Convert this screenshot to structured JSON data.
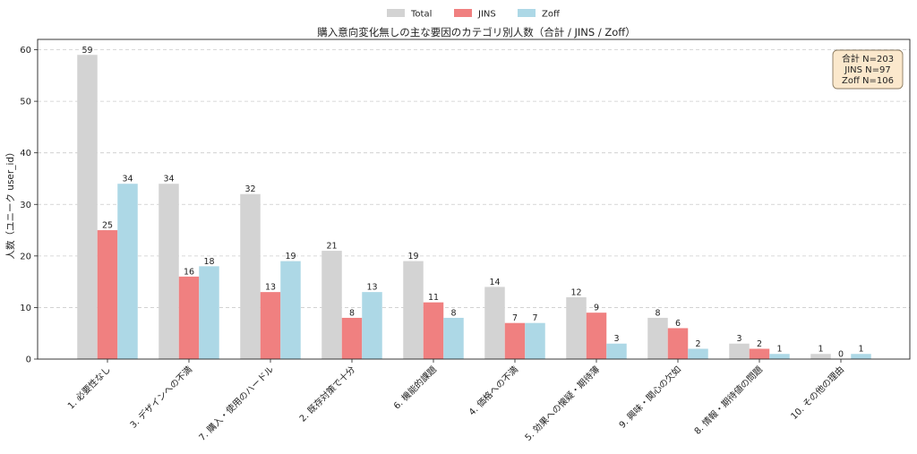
{
  "chart_data": {
    "type": "bar",
    "title": "購入意向変化無しの主な要因のカテゴリ別人数（合計 / JINS / Zoff）",
    "xlabel": "",
    "ylabel": "人数（ユニーク user_id）",
    "ylim": [
      0,
      62
    ],
    "yticks": [
      0,
      10,
      20,
      30,
      40,
      50,
      60
    ],
    "grid": true,
    "legend_position": "top-center",
    "categories": [
      "1. 必要性なし",
      "3. デザインへの不満",
      "7. 購入・使用のハードル",
      "2. 既存対策で十分",
      "6. 機能的課題",
      "4. 価格への不満",
      "5. 効果への懐疑・期待薄",
      "9. 興味・関心の欠如",
      "8. 情報・期待値の問題",
      "10. その他の理由"
    ],
    "series": [
      {
        "name": "Total",
        "color": "#d3d3d3",
        "values": [
          59,
          34,
          32,
          21,
          19,
          14,
          12,
          8,
          3,
          1
        ]
      },
      {
        "name": "JINS",
        "color": "#f08080",
        "values": [
          25,
          16,
          13,
          8,
          11,
          7,
          9,
          6,
          2,
          0
        ]
      },
      {
        "name": "Zoff",
        "color": "#add8e6",
        "values": [
          34,
          18,
          19,
          13,
          8,
          7,
          3,
          2,
          1,
          1
        ]
      }
    ],
    "annotation_box": [
      "合計 N=203",
      "JINS  N=97",
      "Zoff  N=106"
    ]
  }
}
